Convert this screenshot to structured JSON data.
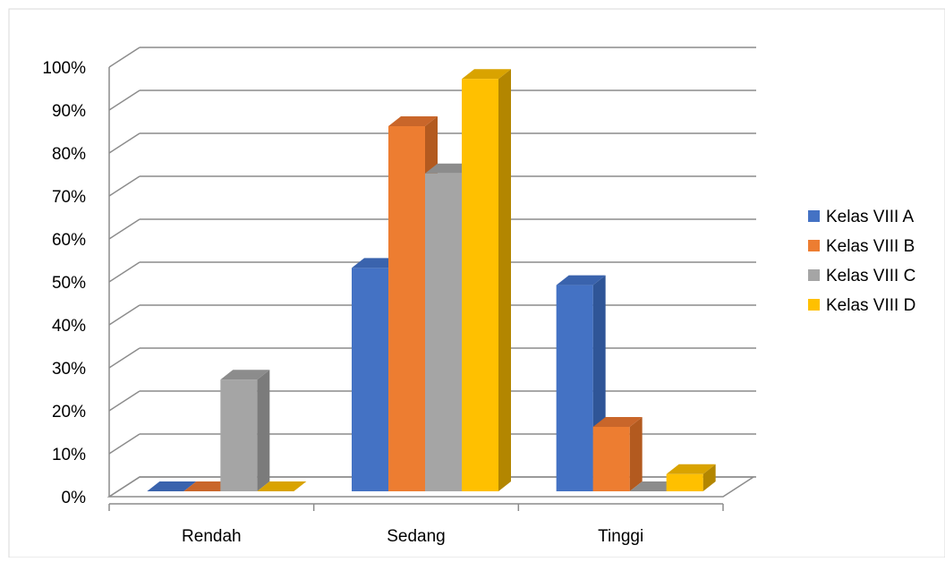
{
  "chart_data": {
    "type": "bar",
    "title": "",
    "xlabel": "",
    "ylabel": "",
    "ylim": [
      0,
      100
    ],
    "yticks": [
      "0%",
      "10%",
      "20%",
      "30%",
      "40%",
      "50%",
      "60%",
      "70%",
      "80%",
      "90%",
      "100%"
    ],
    "categories": [
      "Rendah",
      "Sedang",
      "Tinggi"
    ],
    "series": [
      {
        "name": "Kelas VIII A",
        "values": [
          0,
          52,
          48
        ]
      },
      {
        "name": "Kelas VIII B",
        "values": [
          0,
          85,
          15
        ]
      },
      {
        "name": "Kelas VIII C",
        "values": [
          26,
          74,
          0
        ]
      },
      {
        "name": "Kelas VIII D",
        "values": [
          0,
          96,
          4
        ]
      }
    ],
    "colors": {
      "Kelas VIII A": {
        "front": "#4472C4",
        "side": "#2F5597",
        "top": "#3A63AD"
      },
      "Kelas VIII B": {
        "front": "#ED7D31",
        "side": "#B35A1F",
        "top": "#C9662A"
      },
      "Kelas VIII C": {
        "front": "#A5A5A5",
        "side": "#7B7B7B",
        "top": "#8C8C8C"
      },
      "Kelas VIII D": {
        "front": "#FFC000",
        "side": "#B38600",
        "top": "#D9A300"
      }
    },
    "grid": true,
    "legend_position": "right",
    "projection": "3d-column"
  }
}
